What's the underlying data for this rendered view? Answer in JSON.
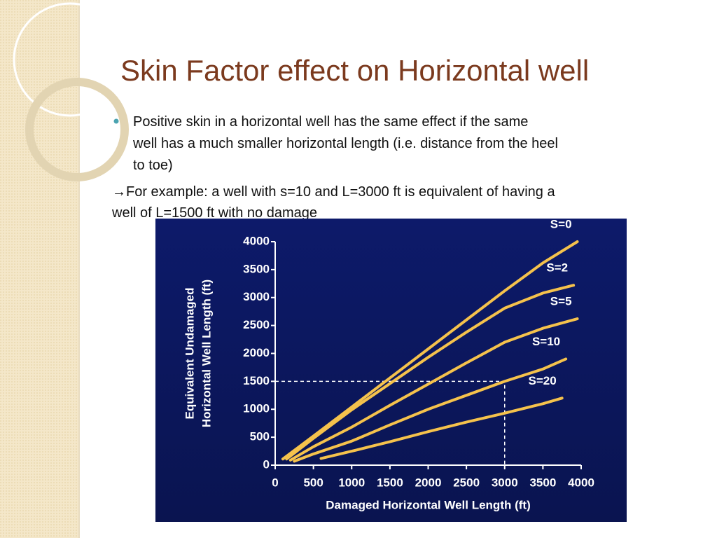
{
  "slide": {
    "title": "Skin Factor effect on Horizontal well",
    "bullet": [
      "Positive skin in a horizontal well has the same  effect if the same",
      "well has a much smaller horizontal length (i.e. distance from the heel",
      "to toe)"
    ],
    "example": [
      "→For example: a well with s=10 and L=3000 ft is equivalent of having a",
      "well of L=1500 ft with no damage"
    ]
  },
  "chart_data": {
    "type": "line",
    "xlabel": "Damaged Horizontal Well Length (ft)",
    "ylabel": [
      "Equivalent Undamaged",
      "Horizontal Well Length (ft)"
    ],
    "xlim": [
      0,
      4000
    ],
    "ylim": [
      0,
      4000
    ],
    "xticks": [
      0,
      500,
      1000,
      1500,
      2000,
      2500,
      3000,
      3500,
      4000
    ],
    "yticks": [
      0,
      500,
      1000,
      1500,
      2000,
      2500,
      3000,
      3500,
      4000
    ],
    "reference": {
      "x": 3000,
      "y": 1500
    },
    "series": [
      {
        "name": "S=0",
        "color": "#f5c24c",
        "x": [
          100,
          500,
          1000,
          1500,
          2000,
          2500,
          3000,
          3500,
          3950
        ],
        "values": [
          110,
          520,
          1040,
          1560,
          2080,
          2600,
          3120,
          3620,
          4000
        ]
      },
      {
        "name": "S=2",
        "color": "#f5c24c",
        "x": [
          150,
          500,
          1000,
          1500,
          2000,
          2500,
          3000,
          3500,
          3900
        ],
        "values": [
          110,
          480,
          990,
          1460,
          1930,
          2380,
          2810,
          3080,
          3220
        ]
      },
      {
        "name": "S=5",
        "color": "#f5c24c",
        "x": [
          200,
          500,
          1000,
          1500,
          2000,
          2500,
          3000,
          3500,
          3950
        ],
        "values": [
          90,
          330,
          680,
          1070,
          1450,
          1830,
          2200,
          2450,
          2620
        ]
      },
      {
        "name": "S=10",
        "color": "#f5c24c",
        "x": [
          250,
          500,
          1000,
          1500,
          2000,
          2500,
          3000,
          3500,
          3800
        ],
        "values": [
          70,
          200,
          430,
          720,
          1000,
          1250,
          1500,
          1720,
          1900
        ]
      },
      {
        "name": "S=20",
        "color": "#f5c24c",
        "x": [
          600,
          1000,
          1500,
          2000,
          2500,
          3000,
          3500,
          3750
        ],
        "values": [
          120,
          250,
          420,
          600,
          770,
          930,
          1100,
          1200
        ]
      }
    ]
  }
}
